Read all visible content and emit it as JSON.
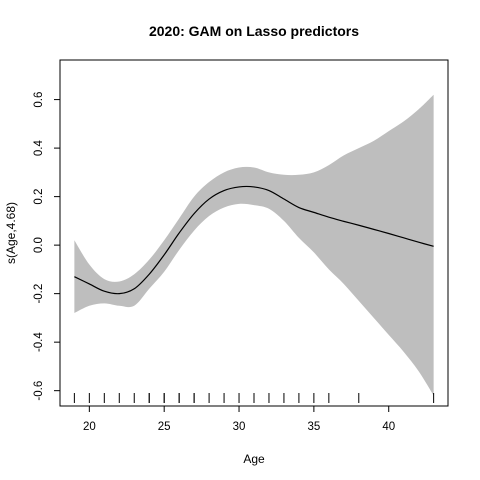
{
  "chart_data": {
    "type": "line",
    "title": "2020: GAM on Lasso predictors",
    "xlabel": "Age",
    "ylabel": "s(Age,4.68)",
    "xlim": [
      18.04,
      43.96
    ],
    "ylim": [
      -0.6632,
      0.7632
    ],
    "x_ticks": [
      20,
      25,
      30,
      35,
      40
    ],
    "x_tick_labels": [
      "20",
      "25",
      "30",
      "35",
      "40"
    ],
    "y_ticks": [
      -0.6,
      -0.4,
      -0.2,
      0.0,
      0.2,
      0.4,
      0.6
    ],
    "y_tick_labels": [
      "-0.6",
      "-0.4",
      "-0.2",
      "0.0",
      "0.2",
      "0.4",
      "0.6"
    ],
    "grid": false,
    "series": [
      {
        "role": "estimate",
        "color": "#000000",
        "x": [
          19,
          20,
          21,
          22,
          23,
          24,
          25,
          26,
          27,
          28,
          29,
          30,
          31,
          32,
          33,
          34,
          35,
          36,
          37,
          38,
          39,
          40,
          41,
          42,
          43
        ],
        "y": [
          -0.13,
          -0.16,
          -0.19,
          -0.2,
          -0.18,
          -0.12,
          -0.04,
          0.05,
          0.13,
          0.19,
          0.225,
          0.24,
          0.24,
          0.225,
          0.19,
          0.155,
          0.135,
          0.115,
          0.098,
          0.082,
          0.065,
          0.048,
          0.03,
          0.012,
          -0.005
        ]
      }
    ],
    "confidence_band": {
      "color": "#bebebe",
      "x": [
        19,
        20,
        21,
        22,
        23,
        24,
        25,
        26,
        27,
        28,
        29,
        30,
        31,
        32,
        33,
        34,
        35,
        36,
        37,
        38,
        39,
        40,
        41,
        42,
        43
      ],
      "upper": [
        0.02,
        -0.08,
        -0.14,
        -0.15,
        -0.12,
        -0.06,
        0.02,
        0.11,
        0.2,
        0.26,
        0.3,
        0.32,
        0.32,
        0.3,
        0.29,
        0.29,
        0.3,
        0.33,
        0.37,
        0.4,
        0.43,
        0.47,
        0.51,
        0.56,
        0.62
      ],
      "lower": [
        -0.28,
        -0.25,
        -0.24,
        -0.25,
        -0.25,
        -0.18,
        -0.11,
        -0.02,
        0.06,
        0.12,
        0.155,
        0.17,
        0.165,
        0.15,
        0.1,
        0.03,
        -0.03,
        -0.1,
        -0.16,
        -0.23,
        -0.3,
        -0.37,
        -0.44,
        -0.52,
        -0.62
      ]
    },
    "rug": [
      19,
      20,
      21,
      22,
      23,
      24,
      24,
      25,
      25,
      26,
      26,
      27,
      27,
      28,
      29,
      30,
      31,
      32,
      33,
      34,
      35,
      36,
      38,
      43
    ]
  }
}
